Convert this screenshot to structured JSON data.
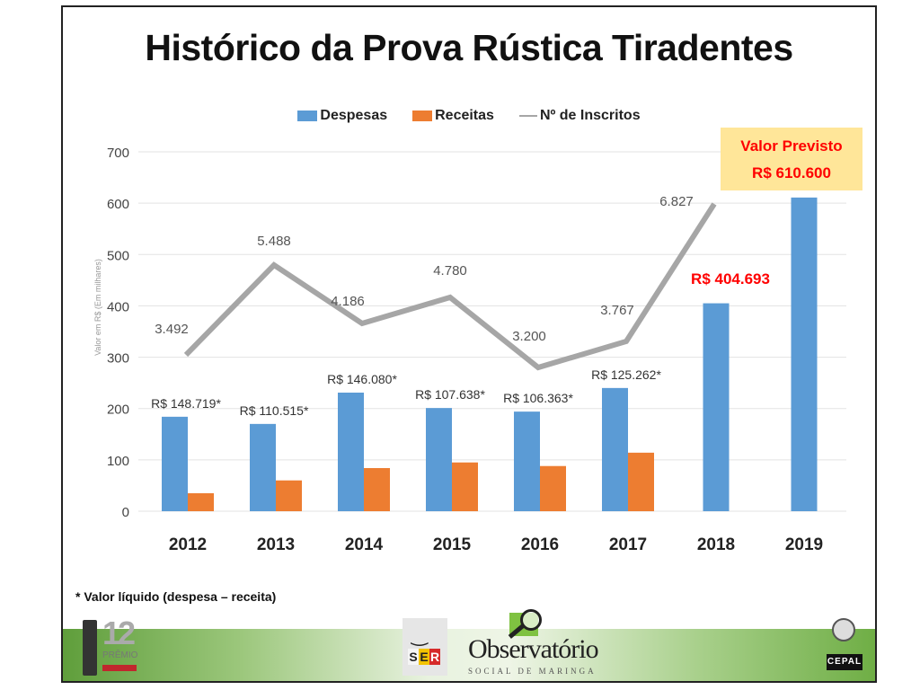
{
  "title": "Histórico da Prova Rústica Tiradentes",
  "legend": {
    "despesas": "Despesas",
    "receitas": "Receitas",
    "inscritos": "Nº de Inscritos"
  },
  "colors": {
    "despesas": "#5b9bd5",
    "receitas": "#ed7d31",
    "inscritos": "#a6a6a6",
    "highlight": "#ff0000",
    "callout_bg": "#ffe699"
  },
  "y_axis_label": "Valor em R$   (Em milhares)",
  "callout": {
    "line1": "Valor Previsto",
    "line2": "R$ 610.600"
  },
  "footnote": "* Valor líquido (despesa – receita)",
  "logos": {
    "premio": {
      "num": "12",
      "text": "PRÊMIO"
    },
    "ser": {
      "letters": [
        "S",
        "E",
        "R"
      ]
    },
    "observatorio": {
      "name": "Observatório",
      "sub": "SOCIAL DE MARINGA"
    },
    "cepal": {
      "text": "CEPAL"
    }
  },
  "chart_data": {
    "type": "bar",
    "title": "Histórico da Prova Rústica Tiradentes",
    "xlabel": "",
    "ylabel": "Valor em R$ (Em milhares)",
    "ylim": [
      0,
      700
    ],
    "yticks": [
      0,
      100,
      200,
      300,
      400,
      500,
      600,
      700
    ],
    "grid": true,
    "legend_position": "top",
    "categories": [
      "2012",
      "2013",
      "2014",
      "2015",
      "2016",
      "2017",
      "2018",
      "2019"
    ],
    "series": [
      {
        "name": "Despesas",
        "type": "bar",
        "values": [
          184,
          170,
          231,
          201,
          194,
          240,
          405,
          611
        ]
      },
      {
        "name": "Receitas",
        "type": "bar",
        "values": [
          35,
          60,
          84,
          95,
          88,
          114,
          null,
          null
        ]
      },
      {
        "name": "Nº de Inscritos",
        "type": "line",
        "values": [
          3492,
          5488,
          4186,
          4780,
          3200,
          3767,
          6827,
          null
        ]
      }
    ],
    "data_labels": {
      "Despesas": [
        "R$ 148.719*",
        "R$ 110.515*",
        "R$ 146.080*",
        "R$ 107.638*",
        "R$ 106.363*",
        "R$ 125.262*",
        "R$ 404.693",
        ""
      ],
      "Nº de Inscritos": [
        "3.492",
        "5.488",
        "4.186",
        "4.780",
        "3.200",
        "3.767",
        "6.827",
        ""
      ]
    },
    "annotations": [
      "Valor Previsto R$ 610.600",
      "* Valor líquido (despesa – receita)"
    ]
  }
}
